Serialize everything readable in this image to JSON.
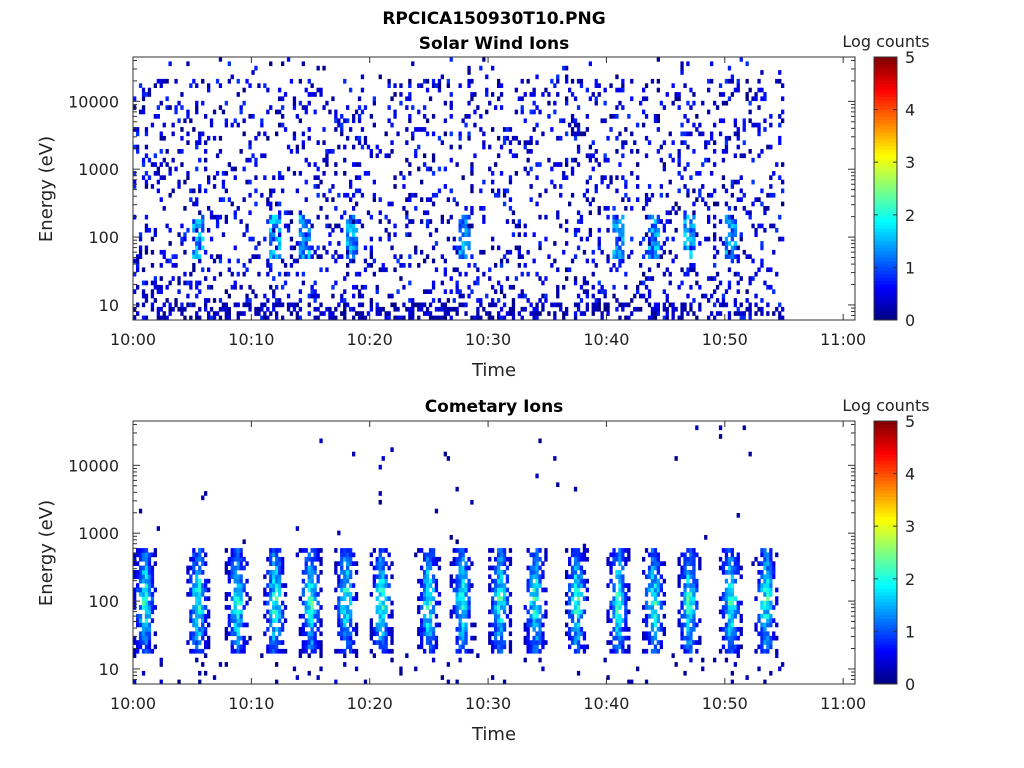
{
  "figure_title": "RPCICA150930T10.PNG",
  "chart_data": [
    {
      "type": "heatmap",
      "title": "Solar Wind Ions",
      "xlabel": "Time",
      "ylabel": "Energy (eV)",
      "x_ticks": [
        "10:00",
        "10:10",
        "10:20",
        "10:30",
        "10:40",
        "10:50",
        "11:00"
      ],
      "y_ticks": [
        "10",
        "100",
        "1000",
        "10000"
      ],
      "y_scale": "log",
      "y_range": [
        6,
        45000
      ],
      "x_range_minutes": [
        0,
        61
      ],
      "data_end_minutes": 55,
      "colorbar": {
        "label": "Log counts",
        "min": 0,
        "max": 5,
        "ticks": [
          "0",
          "1",
          "2",
          "3",
          "4",
          "5"
        ]
      },
      "description": "sparse low-level counts (log counts ~0-1) scattered across 10-20000 eV, with weak bursts near 100 eV",
      "bursts_minutes": [
        5.5,
        12,
        14.5,
        18.5,
        28,
        41,
        44,
        47,
        50.5
      ]
    },
    {
      "type": "heatmap",
      "title": "Cometary Ions",
      "xlabel": "Time",
      "ylabel": "Energy (eV)",
      "x_ticks": [
        "10:00",
        "10:10",
        "10:20",
        "10:30",
        "10:40",
        "10:50",
        "11:00"
      ],
      "y_ticks": [
        "10",
        "100",
        "1000",
        "10000"
      ],
      "y_scale": "log",
      "y_range": [
        6,
        45000
      ],
      "x_range_minutes": [
        0,
        61
      ],
      "data_end_minutes": 55,
      "colorbar": {
        "label": "Log counts",
        "min": 0,
        "max": 5,
        "ticks": [
          "0",
          "1",
          "2",
          "3",
          "4",
          "5"
        ]
      },
      "description": "periodic bursts of ions between ~20 and ~500 eV, peak log counts ~2.5 near 40-200 eV",
      "bursts_minutes": [
        1,
        5.5,
        8.8,
        12,
        15,
        18,
        21,
        25,
        27.8,
        31,
        34,
        37.5,
        41,
        44,
        47,
        50.5,
        53.5
      ],
      "burst_peak_log_counts": 2.6
    }
  ]
}
